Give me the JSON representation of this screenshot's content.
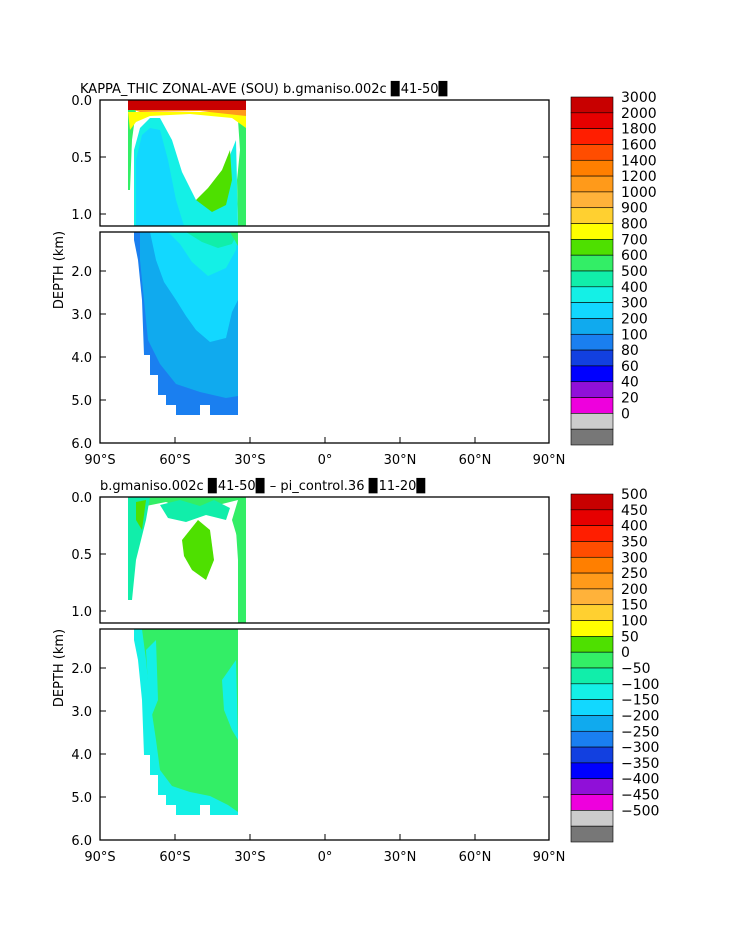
{
  "chart_data": [
    {
      "type": "heatmap",
      "title": "KAPPA_THIC ZONAL-AVE (SOU) b.gmaniso.002c ▉41-50▉",
      "ylabel": "DEPTH (km)",
      "x_ticks": [
        "90°S",
        "60°S",
        "30°S",
        "0°",
        "30°N",
        "60°N",
        "90°N"
      ],
      "y_ticks_upper": [
        "0.0",
        "0.5",
        "1.0"
      ],
      "y_ticks_lower": [
        "2.0",
        "3.0",
        "4.0",
        "5.0",
        "6.0"
      ],
      "x_range": [
        -90,
        90
      ],
      "depth_range_km": [
        0,
        6
      ],
      "colorbar_labels": [
        "3000",
        "2000",
        "1800",
        "1600",
        "1400",
        "1200",
        "1000",
        "900",
        "800",
        "700",
        "600",
        "500",
        "400",
        "300",
        "200",
        "100",
        "80",
        "60",
        "40",
        "20",
        "0"
      ],
      "colorbar_colors": [
        "#c80000",
        "#e60000",
        "#ff1e00",
        "#ff4d00",
        "#ff7f00",
        "#ff9a1a",
        "#ffb23a",
        "#ffd030",
        "#ffff00",
        "#4ee000",
        "#33ee66",
        "#11eeaa",
        "#14f0e6",
        "#12d8ff",
        "#10aaee",
        "#1a7ff0",
        "#1240e0",
        "#0000ff",
        "#9010d8",
        "#ee00dd",
        "#cccccc",
        "#777777"
      ]
    },
    {
      "type": "heatmap",
      "title": "b.gmaniso.002c ▉41-50▉ – pi_control.36 ▉11-20▉",
      "ylabel": "DEPTH (km)",
      "x_ticks": [
        "90°S",
        "60°S",
        "30°S",
        "0°",
        "30°N",
        "60°N",
        "90°N"
      ],
      "y_ticks_upper": [
        "0.0",
        "0.5",
        "1.0"
      ],
      "y_ticks_lower": [
        "2.0",
        "3.0",
        "4.0",
        "5.0",
        "6.0"
      ],
      "x_range": [
        -90,
        90
      ],
      "depth_range_km": [
        0,
        6
      ],
      "colorbar_labels": [
        "500",
        "450",
        "400",
        "350",
        "300",
        "250",
        "200",
        "150",
        "100",
        "50",
        "0",
        "−50",
        "−100",
        "−150",
        "−200",
        "−250",
        "−300",
        "−350",
        "−400",
        "−450",
        "−500"
      ],
      "colorbar_colors": [
        "#c80000",
        "#e60000",
        "#ff1e00",
        "#ff4d00",
        "#ff7f00",
        "#ff9a1a",
        "#ffb23a",
        "#ffd030",
        "#ffff00",
        "#4ee000",
        "#33ee66",
        "#11eeaa",
        "#14f0e6",
        "#12d8ff",
        "#10aaee",
        "#1a7ff0",
        "#1240e0",
        "#0000ff",
        "#9010d8",
        "#ee00dd",
        "#cccccc",
        "#777777"
      ]
    }
  ]
}
